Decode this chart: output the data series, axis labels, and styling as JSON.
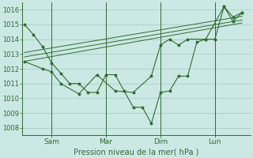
{
  "bg_color": "#cce8e4",
  "grid_color": "#a0c8c4",
  "line_color": "#2d6e2d",
  "title": "Pression niveau de la mer( hPa )",
  "ylim": [
    1007.5,
    1016.5
  ],
  "yticks": [
    1008,
    1009,
    1010,
    1011,
    1012,
    1013,
    1014,
    1015,
    1016
  ],
  "day_positions": [
    0.125,
    0.375,
    0.625,
    0.875
  ],
  "day_labels": [
    "Sam",
    "Mar",
    "Dim",
    "Lun"
  ],
  "series1_x": [
    0.0,
    0.042,
    0.083,
    0.125,
    0.167,
    0.208,
    0.25,
    0.292,
    0.333,
    0.375,
    0.417,
    0.458,
    0.5,
    0.542,
    0.583,
    0.625,
    0.667,
    0.708,
    0.75,
    0.792,
    0.833,
    0.875,
    0.917,
    0.958,
    1.0
  ],
  "series1_y": [
    1015.0,
    1014.3,
    1013.5,
    1012.4,
    1011.7,
    1011.0,
    1011.0,
    1010.4,
    1010.4,
    1011.6,
    1011.6,
    1010.5,
    1009.4,
    1009.4,
    1008.3,
    1010.4,
    1010.5,
    1011.5,
    1011.5,
    1013.8,
    1014.0,
    1014.0,
    1016.2,
    1015.5,
    1015.8
  ],
  "series2_x": [
    0.0,
    0.083,
    0.125,
    0.167,
    0.25,
    0.333,
    0.417,
    0.5,
    0.583,
    0.625,
    0.667,
    0.708,
    0.75,
    0.833,
    0.917,
    0.958,
    1.0
  ],
  "series2_y": [
    1012.5,
    1012.0,
    1011.8,
    1011.0,
    1010.3,
    1011.6,
    1010.5,
    1010.4,
    1011.5,
    1013.6,
    1014.0,
    1013.6,
    1014.0,
    1014.0,
    1016.2,
    1015.2,
    1015.8
  ],
  "trend1_x": [
    0.0,
    1.0
  ],
  "trend1_y": [
    1012.5,
    1015.1
  ],
  "trend2_x": [
    0.0,
    1.0
  ],
  "trend2_y": [
    1012.8,
    1015.3
  ],
  "trend3_x": [
    0.0,
    1.0
  ],
  "trend3_y": [
    1013.1,
    1015.55
  ],
  "vline_positions": [
    0.125,
    0.375,
    0.625,
    0.875
  ],
  "xlim": [
    -0.01,
    1.04
  ]
}
